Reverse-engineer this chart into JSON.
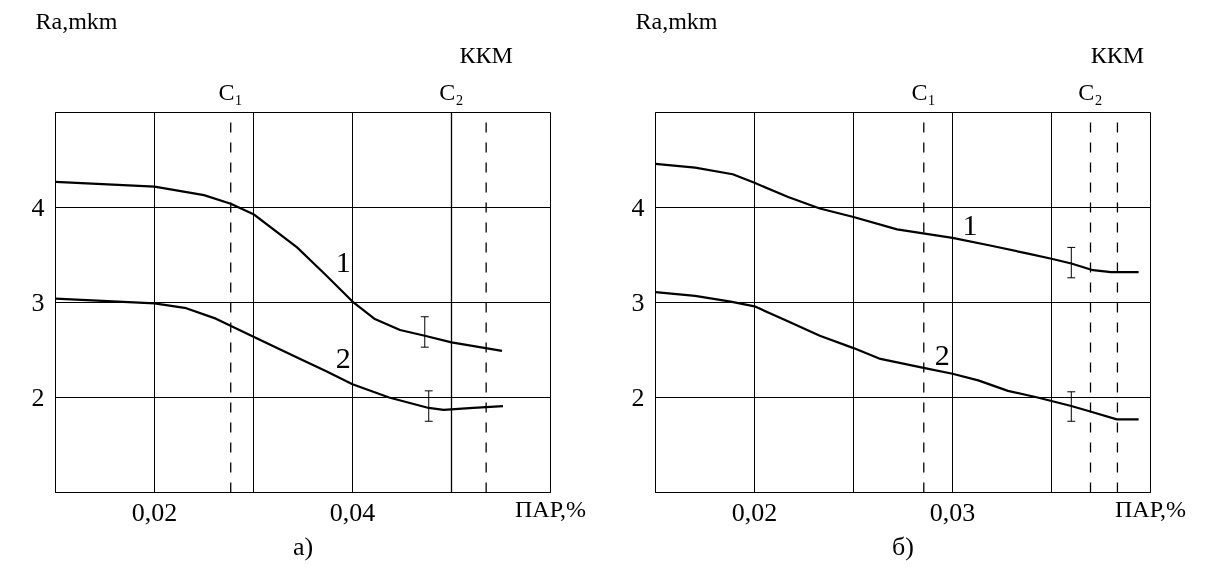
{
  "chart_data": [
    {
      "type": "line",
      "title": "а)",
      "xlabel": "ПАР,%",
      "ylabel": "Ra,mkm",
      "xlim": [
        0.01,
        0.06
      ],
      "ylim": [
        1,
        5
      ],
      "xticks": [
        {
          "value": 0.02,
          "label": "0,02"
        },
        {
          "value": 0.03,
          "label": null
        },
        {
          "value": 0.04,
          "label": "0,04"
        },
        {
          "value": 0.05,
          "label": null
        }
      ],
      "yticks": [
        2,
        3,
        4
      ],
      "grid": true,
      "ref_lines": [
        {
          "axis": "x",
          "value": 0.0277,
          "label": "C₁",
          "line_style": "dashed"
        },
        {
          "axis": "x",
          "value": 0.05,
          "label": "C₂",
          "line_style": "solid"
        },
        {
          "axis": "x",
          "value": 0.0535,
          "label": "ККМ",
          "line_style": "dashed"
        }
      ],
      "series": [
        {
          "name": "1",
          "color": "#000000",
          "x": [
            0.01,
            0.02,
            0.025,
            0.0277,
            0.03,
            0.0344,
            0.0373,
            0.04,
            0.0422,
            0.0448,
            0.0473,
            0.05,
            0.0551
          ],
          "values": [
            4.27,
            4.22,
            4.13,
            4.04,
            3.93,
            3.58,
            3.29,
            3.01,
            2.83,
            2.71,
            2.65,
            2.58,
            2.49
          ],
          "errors": [
            null,
            null,
            null,
            null,
            null,
            null,
            null,
            null,
            null,
            null,
            [
              2.53,
              2.85
            ],
            null,
            null
          ]
        },
        {
          "name": "2",
          "color": "#000000",
          "x": [
            0.01,
            0.02,
            0.0232,
            0.0262,
            0.03,
            0.0344,
            0.0373,
            0.04,
            0.0437,
            0.0477,
            0.0492,
            0.0522,
            0.0552
          ],
          "values": [
            3.04,
            2.99,
            2.94,
            2.83,
            2.64,
            2.42,
            2.28,
            2.14,
            2.0,
            1.89,
            1.87,
            1.89,
            1.91
          ],
          "errors": [
            null,
            null,
            null,
            null,
            null,
            null,
            null,
            null,
            null,
            [
              1.75,
              2.07
            ],
            null,
            null,
            null
          ]
        }
      ]
    },
    {
      "type": "line",
      "title": "б)",
      "xlabel": "ПАР,%",
      "ylabel": "Ra,mkm",
      "xlim": [
        0.015,
        0.04
      ],
      "ylim": [
        1,
        5
      ],
      "xticks": [
        {
          "value": 0.02,
          "label": "0,02"
        },
        {
          "value": 0.025,
          "label": null
        },
        {
          "value": 0.03,
          "label": "0,03"
        },
        {
          "value": 0.035,
          "label": null
        }
      ],
      "yticks": [
        2,
        3,
        4
      ],
      "grid": true,
      "ref_lines": [
        {
          "axis": "x",
          "value": 0.02855,
          "label": "C₁",
          "line_style": "dashed"
        },
        {
          "axis": "x",
          "value": 0.03697,
          "label": "C₂",
          "line_style": "dashed"
        },
        {
          "axis": "x",
          "value": 0.03833,
          "label": "ККМ",
          "line_style": "dashed"
        }
      ],
      "series": [
        {
          "name": "1",
          "color": "#000000",
          "x": [
            0.015,
            0.017,
            0.0189,
            0.02,
            0.0217,
            0.0233,
            0.025,
            0.0272,
            0.03,
            0.0319,
            0.0337,
            0.035,
            0.036,
            0.0371,
            0.038,
            0.0394
          ],
          "values": [
            4.46,
            4.42,
            4.35,
            4.26,
            4.11,
            3.99,
            3.9,
            3.77,
            3.68,
            3.6,
            3.52,
            3.46,
            3.41,
            3.34,
            3.32,
            3.32
          ],
          "errors": [
            null,
            null,
            null,
            null,
            null,
            null,
            null,
            null,
            null,
            null,
            null,
            null,
            [
              3.26,
              3.58
            ],
            null,
            null,
            null
          ]
        },
        {
          "name": "2",
          "color": "#000000",
          "x": [
            0.015,
            0.017,
            0.0188,
            0.02,
            0.0216,
            0.0233,
            0.025,
            0.0263,
            0.0286,
            0.03,
            0.0313,
            0.0328,
            0.0343,
            0.036,
            0.037,
            0.0383,
            0.0394
          ],
          "values": [
            3.11,
            3.07,
            3.01,
            2.96,
            2.81,
            2.65,
            2.52,
            2.41,
            2.31,
            2.25,
            2.18,
            2.07,
            2.0,
            1.91,
            1.85,
            1.77,
            1.77
          ],
          "errors": [
            null,
            null,
            null,
            null,
            null,
            null,
            null,
            null,
            null,
            null,
            null,
            null,
            null,
            [
              1.75,
              2.06
            ],
            null,
            null,
            null
          ]
        }
      ]
    }
  ]
}
